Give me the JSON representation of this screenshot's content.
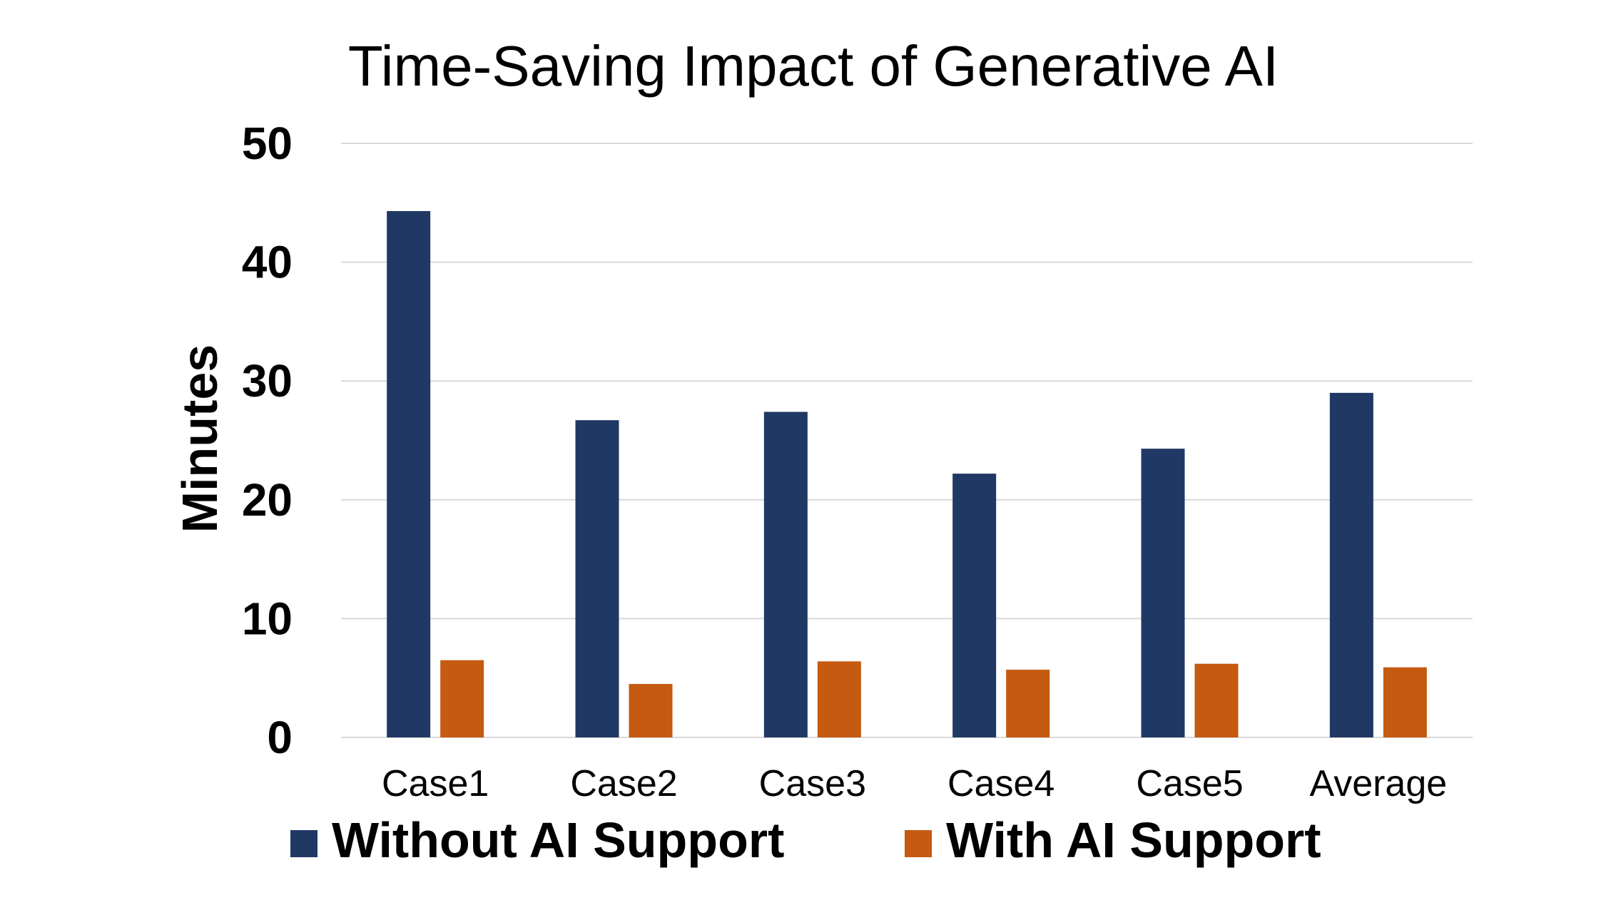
{
  "chart_data": {
    "type": "bar",
    "title": "Time-Saving Impact of Generative AI",
    "xlabel": "",
    "ylabel": "Minutes",
    "categories": [
      "Case1",
      "Case2",
      "Case3",
      "Case4",
      "Case5",
      "Average"
    ],
    "series": [
      {
        "name": "Without AI Support",
        "color": "#203864",
        "values": [
          44.3,
          26.7,
          27.4,
          22.2,
          24.3,
          29.0
        ]
      },
      {
        "name": "With AI Support",
        "color": "#C55A11",
        "values": [
          6.5,
          4.5,
          6.4,
          5.7,
          6.2,
          5.9
        ]
      }
    ],
    "ylim": [
      0,
      50
    ],
    "yticks": [
      0,
      10,
      20,
      30,
      40,
      50
    ],
    "grid": true,
    "legend_position": "bottom"
  }
}
